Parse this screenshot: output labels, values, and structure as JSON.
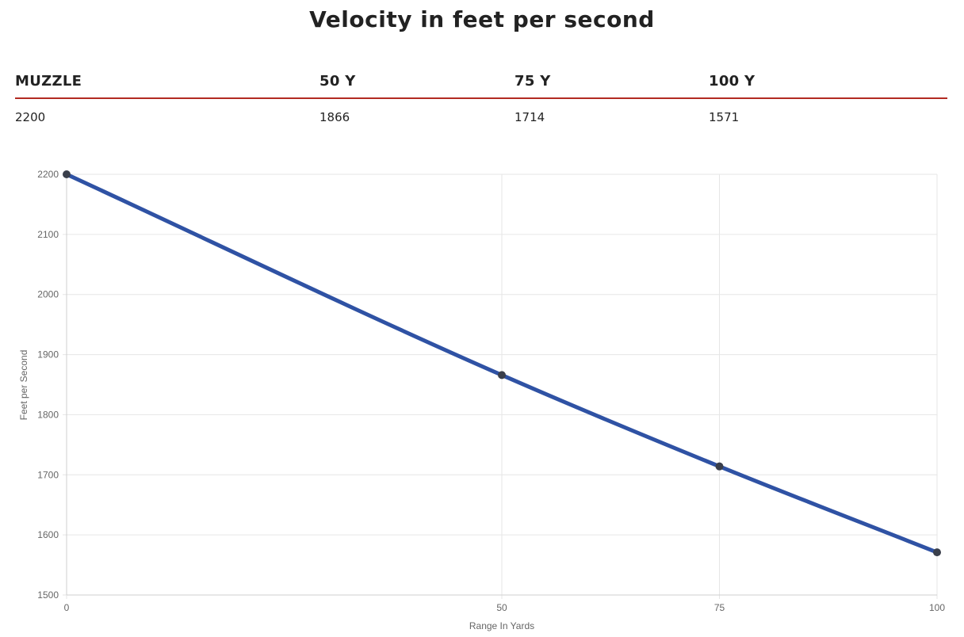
{
  "title": "Velocity in feet per second",
  "table": {
    "headers": [
      "MUZZLE",
      "50 Y",
      "75 Y",
      "100 Y"
    ],
    "values": [
      "2200",
      "1866",
      "1714",
      "1571"
    ]
  },
  "chart_data": {
    "type": "line",
    "x": [
      0,
      50,
      75,
      100
    ],
    "series": [
      {
        "values": [
          2200,
          1866,
          1714,
          1571
        ]
      }
    ],
    "xlabel": "Range In Yards",
    "ylabel": "Feet per Second",
    "xlim": [
      0,
      100
    ],
    "ylim": [
      1500,
      2200
    ],
    "x_ticks": [
      "0",
      "50",
      "75",
      "100"
    ],
    "y_ticks": [
      "1500",
      "1600",
      "1700",
      "1800",
      "1900",
      "2000",
      "2100",
      "2200"
    ],
    "grid": true,
    "line_color": "#2f52a4",
    "point_color": "#3a3f4b",
    "accent_color": "#b22a22"
  }
}
